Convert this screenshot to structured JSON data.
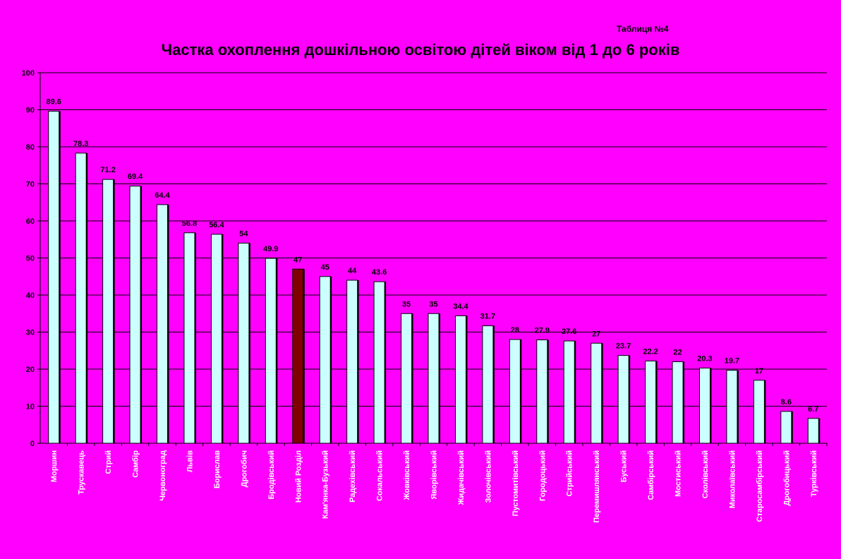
{
  "note": "Таблиця №4",
  "chart_data": {
    "type": "bar",
    "title": "Частка охоплення  дошкільною освітою дітей віком від 1 до 6 років",
    "xlabel": "",
    "ylabel": "",
    "ylim": [
      0,
      100
    ],
    "yticks": [
      0,
      10,
      20,
      30,
      40,
      50,
      60,
      70,
      80,
      90,
      100
    ],
    "grid": true,
    "legend": "none",
    "categories": [
      "Моршин",
      "Трускавець",
      "Стрий",
      "Самбір",
      "Червоноград",
      "Львів",
      "Борислав",
      "Дрогобич",
      "Бродівський",
      "Новий Розділ",
      "Кам'янка-Бузький",
      "Радехівський",
      "Сокальський",
      "Жовківський",
      "Яворівський",
      "Жидачівський",
      "Золочівський",
      "Пустомитівський",
      "Городоцький",
      "Стрийський",
      "Перемишлянський",
      "Буський",
      "Самбірський",
      "Мостиський",
      "Сколівський",
      "Миколаївський",
      "Старосамбірський",
      "Дрогобицький",
      "Турківський"
    ],
    "value_labels": [
      "89.6",
      "78.3",
      "71.2",
      "69.4",
      "64.4",
      "56.8",
      "56.4",
      "54",
      "49.9",
      "47",
      "45",
      "44",
      "43.6",
      "35",
      "35",
      "34.4",
      "31.7",
      "28",
      "27.9",
      "27.6",
      "27",
      "23.7",
      "22.2",
      "22",
      "20.3",
      "19.7",
      "17",
      "8.6",
      "6.7"
    ],
    "series": [
      {
        "values": [
          89.6,
          78.3,
          71.2,
          69.4,
          64.4,
          56.8,
          56.4,
          54,
          49.9,
          47,
          45,
          44,
          43.6,
          35,
          35,
          34.4,
          31.7,
          28,
          27.9,
          27.6,
          27,
          23.7,
          22.2,
          22,
          20.3,
          19.7,
          17,
          8.6,
          6.7
        ]
      }
    ],
    "highlight_index": 9,
    "colors": {
      "background": "#FF00FF",
      "bar": "#CCFFFF",
      "bar_highlight": "#800000",
      "bar_outline": "#000000",
      "gridline": "#000000",
      "category_text": "#FFFFFF",
      "tick_text": "#000000"
    }
  }
}
